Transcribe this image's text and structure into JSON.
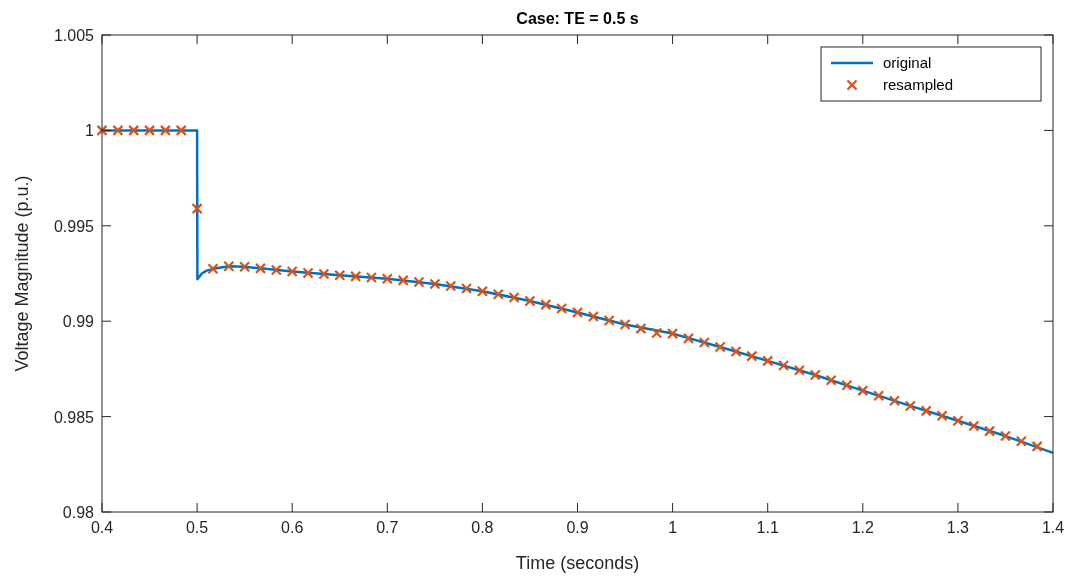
{
  "chart_data": {
    "type": "line",
    "title": "Case: TE = 0.5 s",
    "xlabel": "Time (seconds)",
    "ylabel": "Voltage Magnitude (p.u.)",
    "xlim": [
      0.4,
      1.4
    ],
    "xticks": [
      0.4,
      0.5,
      0.6,
      0.7,
      0.8,
      0.9,
      1,
      1.1,
      1.2,
      1.3,
      1.4
    ],
    "ylim": [
      0.98,
      1.005
    ],
    "yticks": [
      0.98,
      0.985,
      0.99,
      0.995,
      1,
      1.005
    ],
    "grid": false,
    "legend": "top right",
    "series": [
      {
        "name": "original",
        "color": "#0072bd",
        "line_style": "solid",
        "marker": "none",
        "x": [
          0.4,
          0.5,
          0.5003,
          0.505,
          0.51,
          0.52,
          0.5333,
          0.55,
          0.5667,
          0.6,
          0.65,
          0.7,
          0.75,
          0.8,
          0.85,
          0.9,
          0.95,
          1,
          1.05,
          1.1,
          1.15,
          1.2,
          1.25,
          1.3,
          1.35,
          1.4
        ],
        "values": [
          1,
          1,
          0.9922,
          0.9925,
          0.99265,
          0.99278,
          0.99288,
          0.99285,
          0.99277,
          0.9926,
          0.99241,
          0.99222,
          0.99195,
          0.99157,
          0.99106,
          0.99046,
          0.98983,
          0.98935,
          0.98865,
          0.98792,
          0.98718,
          0.98636,
          0.98556,
          0.98478,
          0.98398,
          0.9831
        ]
      },
      {
        "name": "resampled",
        "type": "scatter",
        "color": "#d95319",
        "marker": "cross",
        "x": [
          0.4,
          0.4167,
          0.4333,
          0.45,
          0.4667,
          0.4833,
          0.5,
          0.5167,
          0.5333,
          0.55,
          0.5667,
          0.5833,
          0.6,
          0.6167,
          0.6333,
          0.65,
          0.6667,
          0.6833,
          0.7,
          0.7167,
          0.7333,
          0.75,
          0.7667,
          0.7833,
          0.8,
          0.8167,
          0.8333,
          0.85,
          0.8667,
          0.8833,
          0.9,
          0.9167,
          0.9333,
          0.95,
          0.9667,
          0.9833,
          1,
          1.0167,
          1.0333,
          1.05,
          1.0667,
          1.0833,
          1.1,
          1.1167,
          1.1333,
          1.15,
          1.1667,
          1.1833,
          1.2,
          1.2167,
          1.2333,
          1.25,
          1.2667,
          1.2833,
          1.3,
          1.3167,
          1.3333,
          1.35,
          1.3667,
          1.3833
        ],
        "values": [
          1,
          1,
          1,
          1,
          1,
          1,
          0.9959,
          0.99275,
          0.99288,
          0.99285,
          0.99277,
          0.99268,
          0.9926,
          0.99253,
          0.99247,
          0.99241,
          0.99235,
          0.99229,
          0.99222,
          0.99214,
          0.99205,
          0.99195,
          0.99184,
          0.99171,
          0.99157,
          0.99141,
          0.99124,
          0.99106,
          0.99087,
          0.99067,
          0.99046,
          0.99025,
          0.99004,
          0.98983,
          0.98961,
          0.98938,
          0.98935,
          0.9891,
          0.98888,
          0.98865,
          0.98841,
          0.98817,
          0.98792,
          0.98768,
          0.98743,
          0.98718,
          0.98691,
          0.98664,
          0.98636,
          0.98609,
          0.98583,
          0.98556,
          0.9853,
          0.98504,
          0.98478,
          0.98451,
          0.98424,
          0.98398,
          0.98371,
          0.98344
        ]
      }
    ]
  }
}
